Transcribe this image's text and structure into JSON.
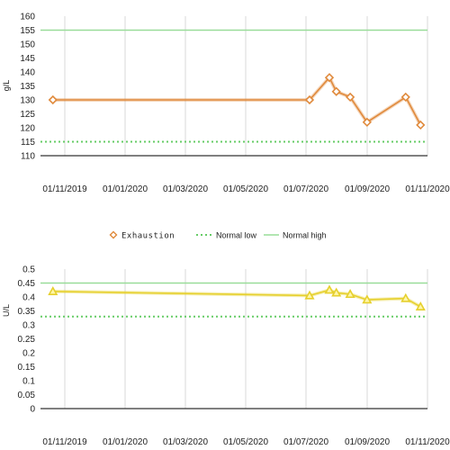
{
  "chart_data": [
    {
      "type": "line",
      "ylabel": "g/L",
      "ylim": [
        110,
        160
      ],
      "yticks": [
        110,
        115,
        120,
        125,
        130,
        135,
        140,
        145,
        150,
        155,
        160
      ],
      "x_ticks": [
        "01/11/2019",
        "01/01/2020",
        "01/03/2020",
        "01/05/2020",
        "01/07/2020",
        "01/09/2020",
        "01/11/2020"
      ],
      "grid": true,
      "series": [
        {
          "name": "Exhaustion",
          "marker": "diamond",
          "color": "#e08a3c",
          "points": [
            {
              "x": "2019-10-20",
              "y": 130
            },
            {
              "x": "2020-07-05",
              "y": 130
            },
            {
              "x": "2020-07-25",
              "y": 138
            },
            {
              "x": "2020-08-01",
              "y": 133
            },
            {
              "x": "2020-08-15",
              "y": 131
            },
            {
              "x": "2020-09-01",
              "y": 122
            },
            {
              "x": "2020-10-10",
              "y": 131
            },
            {
              "x": "2020-10-25",
              "y": 121
            }
          ]
        },
        {
          "name": "Normal low",
          "style": "dotted",
          "color": "#66cc66",
          "value": 115
        },
        {
          "name": "Normal high",
          "style": "solid",
          "color": "#99dd99",
          "value": 155
        }
      ],
      "legend": {
        "placement": "bottom-center",
        "items": [
          {
            "label": "Exhaustion",
            "marker": "diamond",
            "color": "#e08a3c"
          },
          {
            "label": "Normal low",
            "style": "dotted",
            "color": "#66cc66"
          },
          {
            "label": "Normal high",
            "style": "solid",
            "color": "#99dd99"
          }
        ]
      }
    },
    {
      "type": "line",
      "ylabel": "U/L",
      "ylim": [
        0,
        0.5
      ],
      "yticks": [
        0,
        0.05,
        0.1,
        0.15,
        0.2,
        0.25,
        0.3,
        0.35,
        0.4,
        0.45,
        0.5
      ],
      "ytick_labels": [
        "0",
        "0.05",
        "0.1",
        "0.15",
        "0.2",
        "0.25",
        "0.3",
        "0.35",
        "0.4",
        "0.45",
        "0.5"
      ],
      "x_ticks": [
        "01/11/2019",
        "01/01/2020",
        "01/03/2020",
        "01/05/2020",
        "01/07/2020",
        "01/09/2020",
        "01/11/2020"
      ],
      "grid": true,
      "series": [
        {
          "marker": "triangle",
          "color": "#e6d02e",
          "points": [
            {
              "x": "2019-10-20",
              "y": 0.42
            },
            {
              "x": "2020-07-05",
              "y": 0.405
            },
            {
              "x": "2020-07-25",
              "y": 0.425
            },
            {
              "x": "2020-08-01",
              "y": 0.415
            },
            {
              "x": "2020-08-15",
              "y": 0.41
            },
            {
              "x": "2020-09-01",
              "y": 0.39
            },
            {
              "x": "2020-10-10",
              "y": 0.395
            },
            {
              "x": "2020-10-25",
              "y": 0.365
            }
          ]
        },
        {
          "style": "dotted",
          "color": "#66cc66",
          "value": 0.33
        },
        {
          "style": "solid",
          "color": "#99dd99",
          "value": 0.45
        }
      ]
    }
  ]
}
